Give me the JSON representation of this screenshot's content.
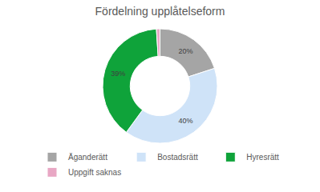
{
  "chart_data": {
    "type": "pie",
    "title": "Fördelning upplåtelseform",
    "categories": [
      "Äganderätt",
      "Bostadsrätt",
      "Hyresrätt",
      "Uppgift saknas"
    ],
    "values": [
      20,
      40,
      39,
      1
    ],
    "value_labels": [
      "20%",
      "40%",
      "39%",
      null
    ],
    "colors": [
      "#a5a5a5",
      "#cfe3f8",
      "#0fa33a",
      "#e8a7c4"
    ],
    "data_labels": true,
    "legend": "bottom"
  }
}
